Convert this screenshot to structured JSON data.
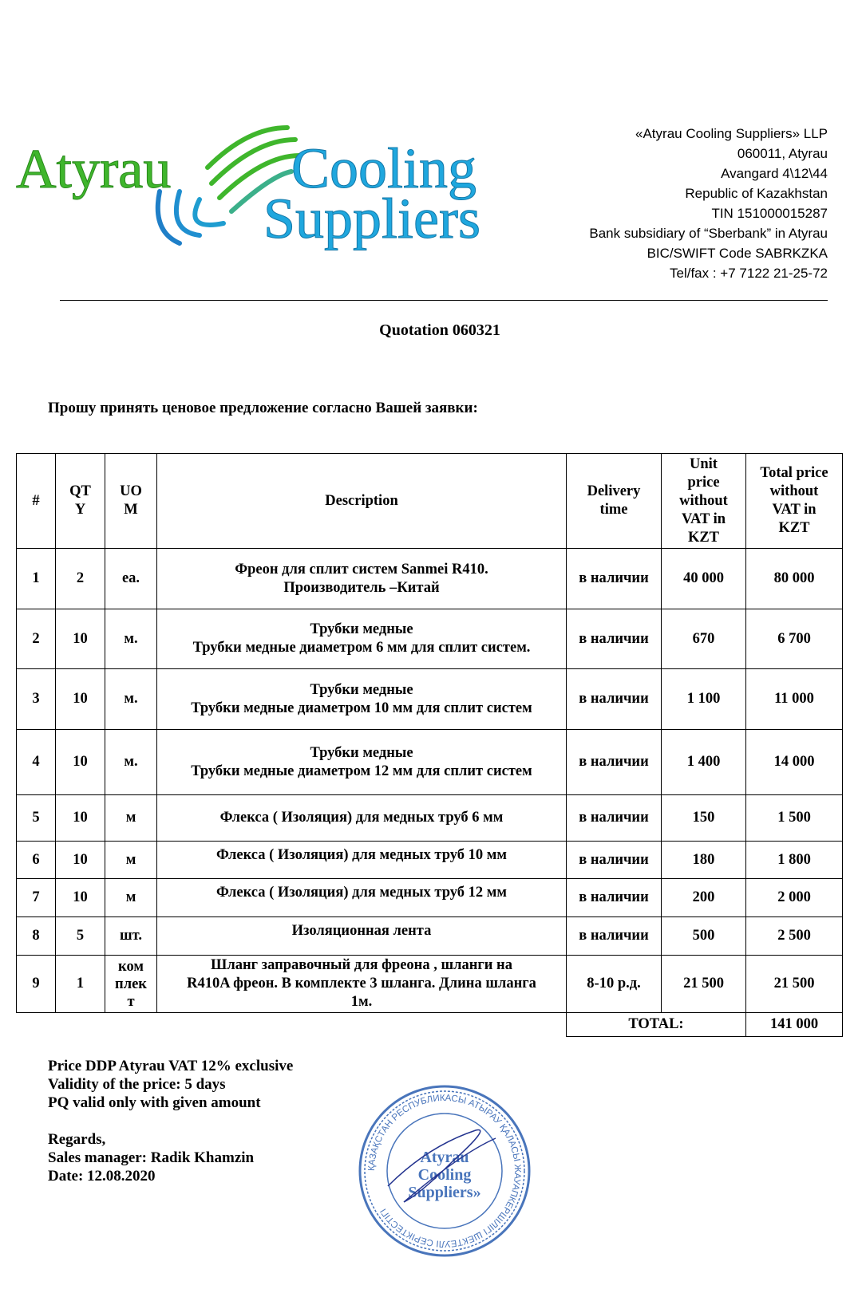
{
  "logo": {
    "word1": "Atyrau",
    "word2": "Cooling",
    "word3": "Suppliers",
    "green": "#3fb62c",
    "blue": "#1fa7de"
  },
  "address": [
    "«Atyrau Cooling Suppliers» LLP",
    "060011, Atyrau",
    "Avangard 4\\12\\44",
    "Republic of Kazakhstan",
    "TIN 151000015287",
    "Bank subsidiary of “Sberbank” in  Atyrau",
    "BIC/SWIFT Code  SABRKZKA",
    "Tel/fax : +7 7122 21-25-72"
  ],
  "title": "Quotation 060321",
  "intro": "Прошу принять ценовое предложение согласно Вашей заявки:",
  "table": {
    "headers": [
      "#",
      "QT\nY",
      "UO\nM",
      "Description",
      "Delivery\ntime",
      "Unit\nprice\nwithout\nVAT in\nKZT",
      "Total price\nwithout\nVAT in\nKZT"
    ],
    "rows": [
      {
        "n": "1",
        "qty": "2",
        "uom": "ea.",
        "desc": "Фреон для сплит систем Sanmei R410.\nПроизводитель –Китай",
        "delivery": "в наличии",
        "unit": "40 000",
        "total": "80 000"
      },
      {
        "n": "2",
        "qty": "10",
        "uom": "м.",
        "desc": "Трубки медные\nТрубки медные диаметром 6 мм  для сплит систем.",
        "delivery": "в наличии",
        "unit": "670",
        "total": "6 700"
      },
      {
        "n": "3",
        "qty": "10",
        "uom": "м.",
        "desc": "Трубки медные\nТрубки медные диаметром  10 мм для сплит систем",
        "delivery": "в наличии",
        "unit": "1 100",
        "total": "11 000"
      },
      {
        "n": "4",
        "qty": "10",
        "uom": "м.",
        "desc": "Трубки медные\nТрубки медные диаметром  12 мм для сплит систем",
        "delivery": "в наличии",
        "unit": "1 400",
        "total": "14 000"
      },
      {
        "n": "5",
        "qty": "10",
        "uom": "м",
        "desc": "Флекса ( Изоляция) для медных труб 6 мм",
        "delivery": "в наличии",
        "unit": "150",
        "total": "1 500"
      },
      {
        "n": "6",
        "qty": "10",
        "uom": "м",
        "desc": "Флекса ( Изоляция) для медных труб 10 мм",
        "delivery": "в наличии",
        "unit": "180",
        "total": "1 800"
      },
      {
        "n": "7",
        "qty": "10",
        "uom": "м",
        "desc": "Флекса ( Изоляция) для медных труб 12 мм",
        "delivery": "в наличии",
        "unit": "200",
        "total": "2 000"
      },
      {
        "n": "8",
        "qty": "5",
        "uom": "шт.",
        "desc": "Изоляционная лента",
        "delivery": "в наличии",
        "unit": "500",
        "total": "2 500"
      },
      {
        "n": "9",
        "qty": "1",
        "uom": "ком\nплек\nт",
        "desc": "Шланг заправочный для фреона , шланги  на\nR410A фреон. В комплекте 3 шланга. Длина шланга\n1м.",
        "delivery": "8-10 р.д.",
        "unit": "21 500",
        "total": "21 500"
      }
    ],
    "total_label": "TOTAL:",
    "total_value": "141 000"
  },
  "footer": "Price DDP Atyrau VAT 12% exclusive\nValidity of the price: 5 days\nPQ valid only with given amount\n\nRegards,\nSales manager: Radik Khamzin\nDate: 12.08.2020",
  "stamp": {
    "center": "«Atyrau Cooling Suppliers»",
    "ring": "ҚАЗАҚСТАН РЕСПУБЛИКАСЫ АТЫРАУ ҚАЛАСЫ ЖАУАПКЕРШІЛІГІ ШЕКТЕУЛІ СЕРІКТЕСТІГІ",
    "color": "#2a5db0"
  }
}
